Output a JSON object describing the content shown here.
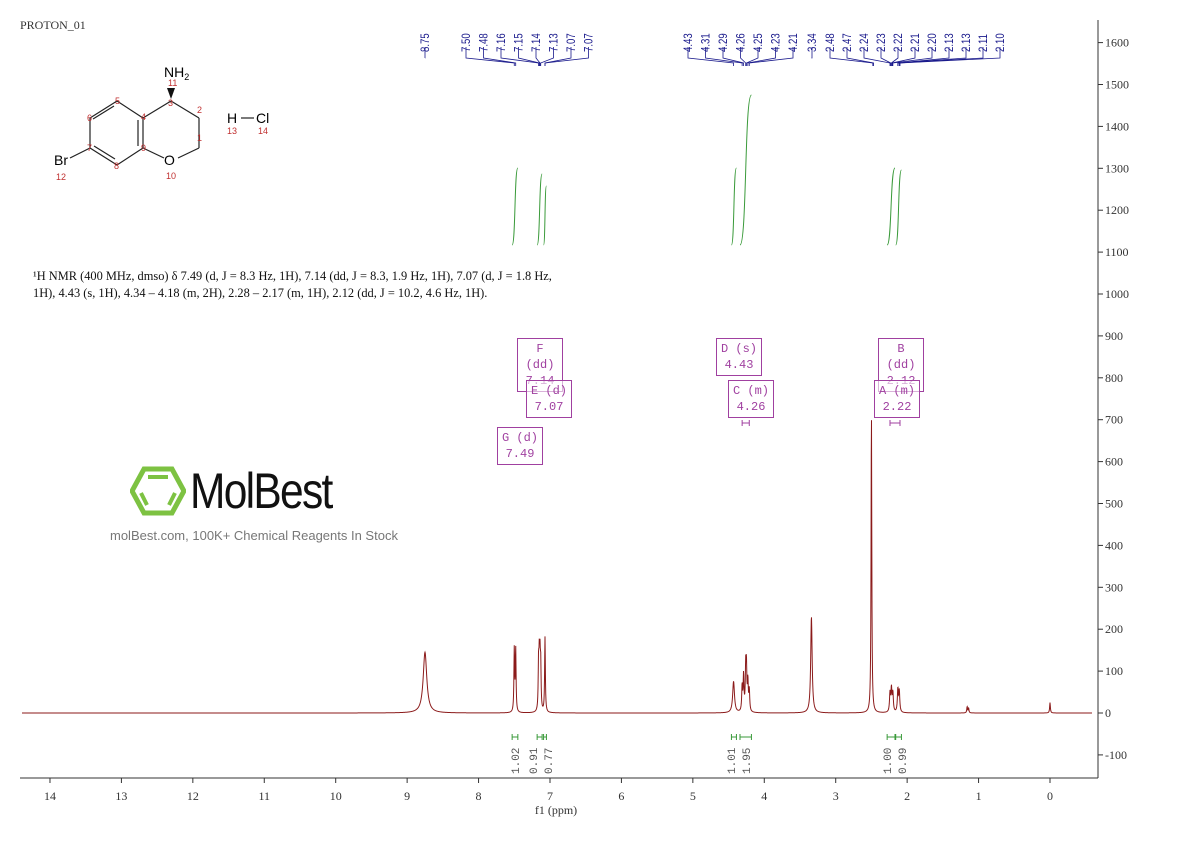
{
  "header": {
    "title": "PROTON_01"
  },
  "structure": {
    "atoms": {
      "nh2": "NH",
      "nh2_sub": "2",
      "br": "Br",
      "o": "O",
      "h": "H",
      "cl": "Cl"
    },
    "numbers": [
      "1",
      "2",
      "3",
      "4",
      "5",
      "6",
      "7",
      "8",
      "9",
      "10",
      "11",
      "12",
      "13",
      "14"
    ]
  },
  "description": {
    "line1": "¹H NMR (400 MHz, dmso) δ 7.49 (d, J = 8.3 Hz, 1H), 7.14 (dd, J = 8.3, 1.9 Hz, 1H), 7.07 (d, J = 1.8 Hz,",
    "line2": "1H), 4.43 (s, 1H), 4.34 – 4.18 (m, 2H), 2.28 – 2.17 (m, 1H), 2.12 (dd, J = 10.2, 4.6 Hz, 1H)."
  },
  "watermark": {
    "brand": "MolBest",
    "tagline": "molBest.com, 100K+ Chemical Reagents In Stock",
    "logo_color": "#7dc242"
  },
  "multiplets": [
    {
      "id": "F",
      "type": "(dd)",
      "shift": "7.14"
    },
    {
      "id": "E",
      "type": "(d)",
      "shift": "7.07"
    },
    {
      "id": "G",
      "type": "(d)",
      "shift": "7.49"
    },
    {
      "id": "D",
      "type": "(s)",
      "shift": "4.43"
    },
    {
      "id": "C",
      "type": "(m)",
      "shift": "4.26"
    },
    {
      "id": "B",
      "type": "(dd)",
      "shift": "2.12"
    },
    {
      "id": "A",
      "type": "(m)",
      "shift": "2.22"
    }
  ],
  "chart_data": {
    "type": "line",
    "xlabel": "f1 (ppm)",
    "xlim": [
      14.4,
      -0.6
    ],
    "ylim": [
      -150,
      1650
    ],
    "x_ticks": [
      "14",
      "13",
      "12",
      "11",
      "10",
      "9",
      "8",
      "7",
      "6",
      "5",
      "4",
      "3",
      "2",
      "1",
      "0"
    ],
    "y_ticks": [
      "1600",
      "1500",
      "1400",
      "1300",
      "1200",
      "1100",
      "1000",
      "900",
      "800",
      "700",
      "600",
      "500",
      "400",
      "300",
      "200",
      "100",
      "0",
      "-100"
    ],
    "y_axis_position": "right",
    "colors": {
      "spectrum": "#8b1a1a",
      "peak_labels": "#1a1a8c",
      "integrals": "#3a9a3a",
      "multiplets": "#a040a0"
    },
    "peak_labels": [
      {
        "group": [
          {
            "t": "8.75",
            "ppm": 8.75
          }
        ]
      },
      {
        "group": [
          {
            "t": "7.50",
            "ppm": 7.5
          },
          {
            "t": "7.48",
            "ppm": 7.48
          },
          {
            "t": "7.16",
            "ppm": 7.16
          },
          {
            "t": "7.15",
            "ppm": 7.15
          },
          {
            "t": "7.14",
            "ppm": 7.14
          },
          {
            "t": "7.13",
            "ppm": 7.13
          },
          {
            "t": "7.07",
            "ppm": 7.07
          },
          {
            "t": "7.07",
            "ppm": 7.07
          }
        ]
      },
      {
        "group": [
          {
            "t": "4.43",
            "ppm": 4.43
          },
          {
            "t": "4.31",
            "ppm": 4.31
          },
          {
            "t": "4.29",
            "ppm": 4.29
          },
          {
            "t": "4.26",
            "ppm": 4.26
          },
          {
            "t": "4.25",
            "ppm": 4.25
          },
          {
            "t": "4.23",
            "ppm": 4.23
          },
          {
            "t": "4.21",
            "ppm": 4.21
          }
        ]
      },
      {
        "group": [
          {
            "t": "3.34",
            "ppm": 3.34
          }
        ]
      },
      {
        "group": [
          {
            "t": "2.48",
            "ppm": 2.48
          },
          {
            "t": "2.47",
            "ppm": 2.47
          },
          {
            "t": "2.24",
            "ppm": 2.24
          },
          {
            "t": "2.23",
            "ppm": 2.23
          },
          {
            "t": "2.22",
            "ppm": 2.22
          },
          {
            "t": "2.21",
            "ppm": 2.21
          },
          {
            "t": "2.20",
            "ppm": 2.2
          },
          {
            "t": "2.13",
            "ppm": 2.13
          },
          {
            "t": "2.13",
            "ppm": 2.13
          },
          {
            "t": "2.11",
            "ppm": 2.11
          },
          {
            "t": "2.10",
            "ppm": 2.1
          }
        ]
      }
    ],
    "peaks": [
      {
        "ppm": 8.75,
        "height": 145,
        "width": 0.03
      },
      {
        "ppm": 7.5,
        "height": 150,
        "width": 0.006
      },
      {
        "ppm": 7.48,
        "height": 150,
        "width": 0.006
      },
      {
        "ppm": 7.16,
        "height": 110,
        "width": 0.006
      },
      {
        "ppm": 7.15,
        "height": 110,
        "width": 0.006
      },
      {
        "ppm": 7.14,
        "height": 110,
        "width": 0.006
      },
      {
        "ppm": 7.13,
        "height": 105,
        "width": 0.006
      },
      {
        "ppm": 7.07,
        "height": 180,
        "width": 0.006
      },
      {
        "ppm": 4.43,
        "height": 75,
        "width": 0.015
      },
      {
        "ppm": 4.31,
        "height": 60,
        "width": 0.007
      },
      {
        "ppm": 4.29,
        "height": 85,
        "width": 0.007
      },
      {
        "ppm": 4.26,
        "height": 95,
        "width": 0.007
      },
      {
        "ppm": 4.25,
        "height": 95,
        "width": 0.007
      },
      {
        "ppm": 4.23,
        "height": 70,
        "width": 0.007
      },
      {
        "ppm": 4.21,
        "height": 50,
        "width": 0.007
      },
      {
        "ppm": 3.34,
        "height": 230,
        "width": 0.012
      },
      {
        "ppm": 2.5,
        "height": 720,
        "width": 0.006
      },
      {
        "ppm": 2.24,
        "height": 45,
        "width": 0.008
      },
      {
        "ppm": 2.22,
        "height": 55,
        "width": 0.008
      },
      {
        "ppm": 2.2,
        "height": 45,
        "width": 0.008
      },
      {
        "ppm": 2.13,
        "height": 55,
        "width": 0.008
      },
      {
        "ppm": 2.11,
        "height": 50,
        "width": 0.008
      },
      {
        "ppm": 1.16,
        "height": 15,
        "width": 0.006
      },
      {
        "ppm": 1.14,
        "height": 12,
        "width": 0.006
      },
      {
        "ppm": 0.0,
        "height": 25,
        "width": 0.006
      }
    ],
    "integrals": [
      {
        "from": 7.53,
        "to": 7.45,
        "value": "1.02"
      },
      {
        "from": 7.18,
        "to": 7.11,
        "value": "0.91"
      },
      {
        "from": 7.09,
        "to": 7.05,
        "value": "0.77"
      },
      {
        "from": 4.46,
        "to": 4.39,
        "value": "1.01"
      },
      {
        "from": 4.34,
        "to": 4.18,
        "value": "1.95"
      },
      {
        "from": 2.28,
        "to": 2.17,
        "value": "1.00"
      },
      {
        "from": 2.16,
        "to": 2.08,
        "value": "0.99"
      }
    ]
  }
}
